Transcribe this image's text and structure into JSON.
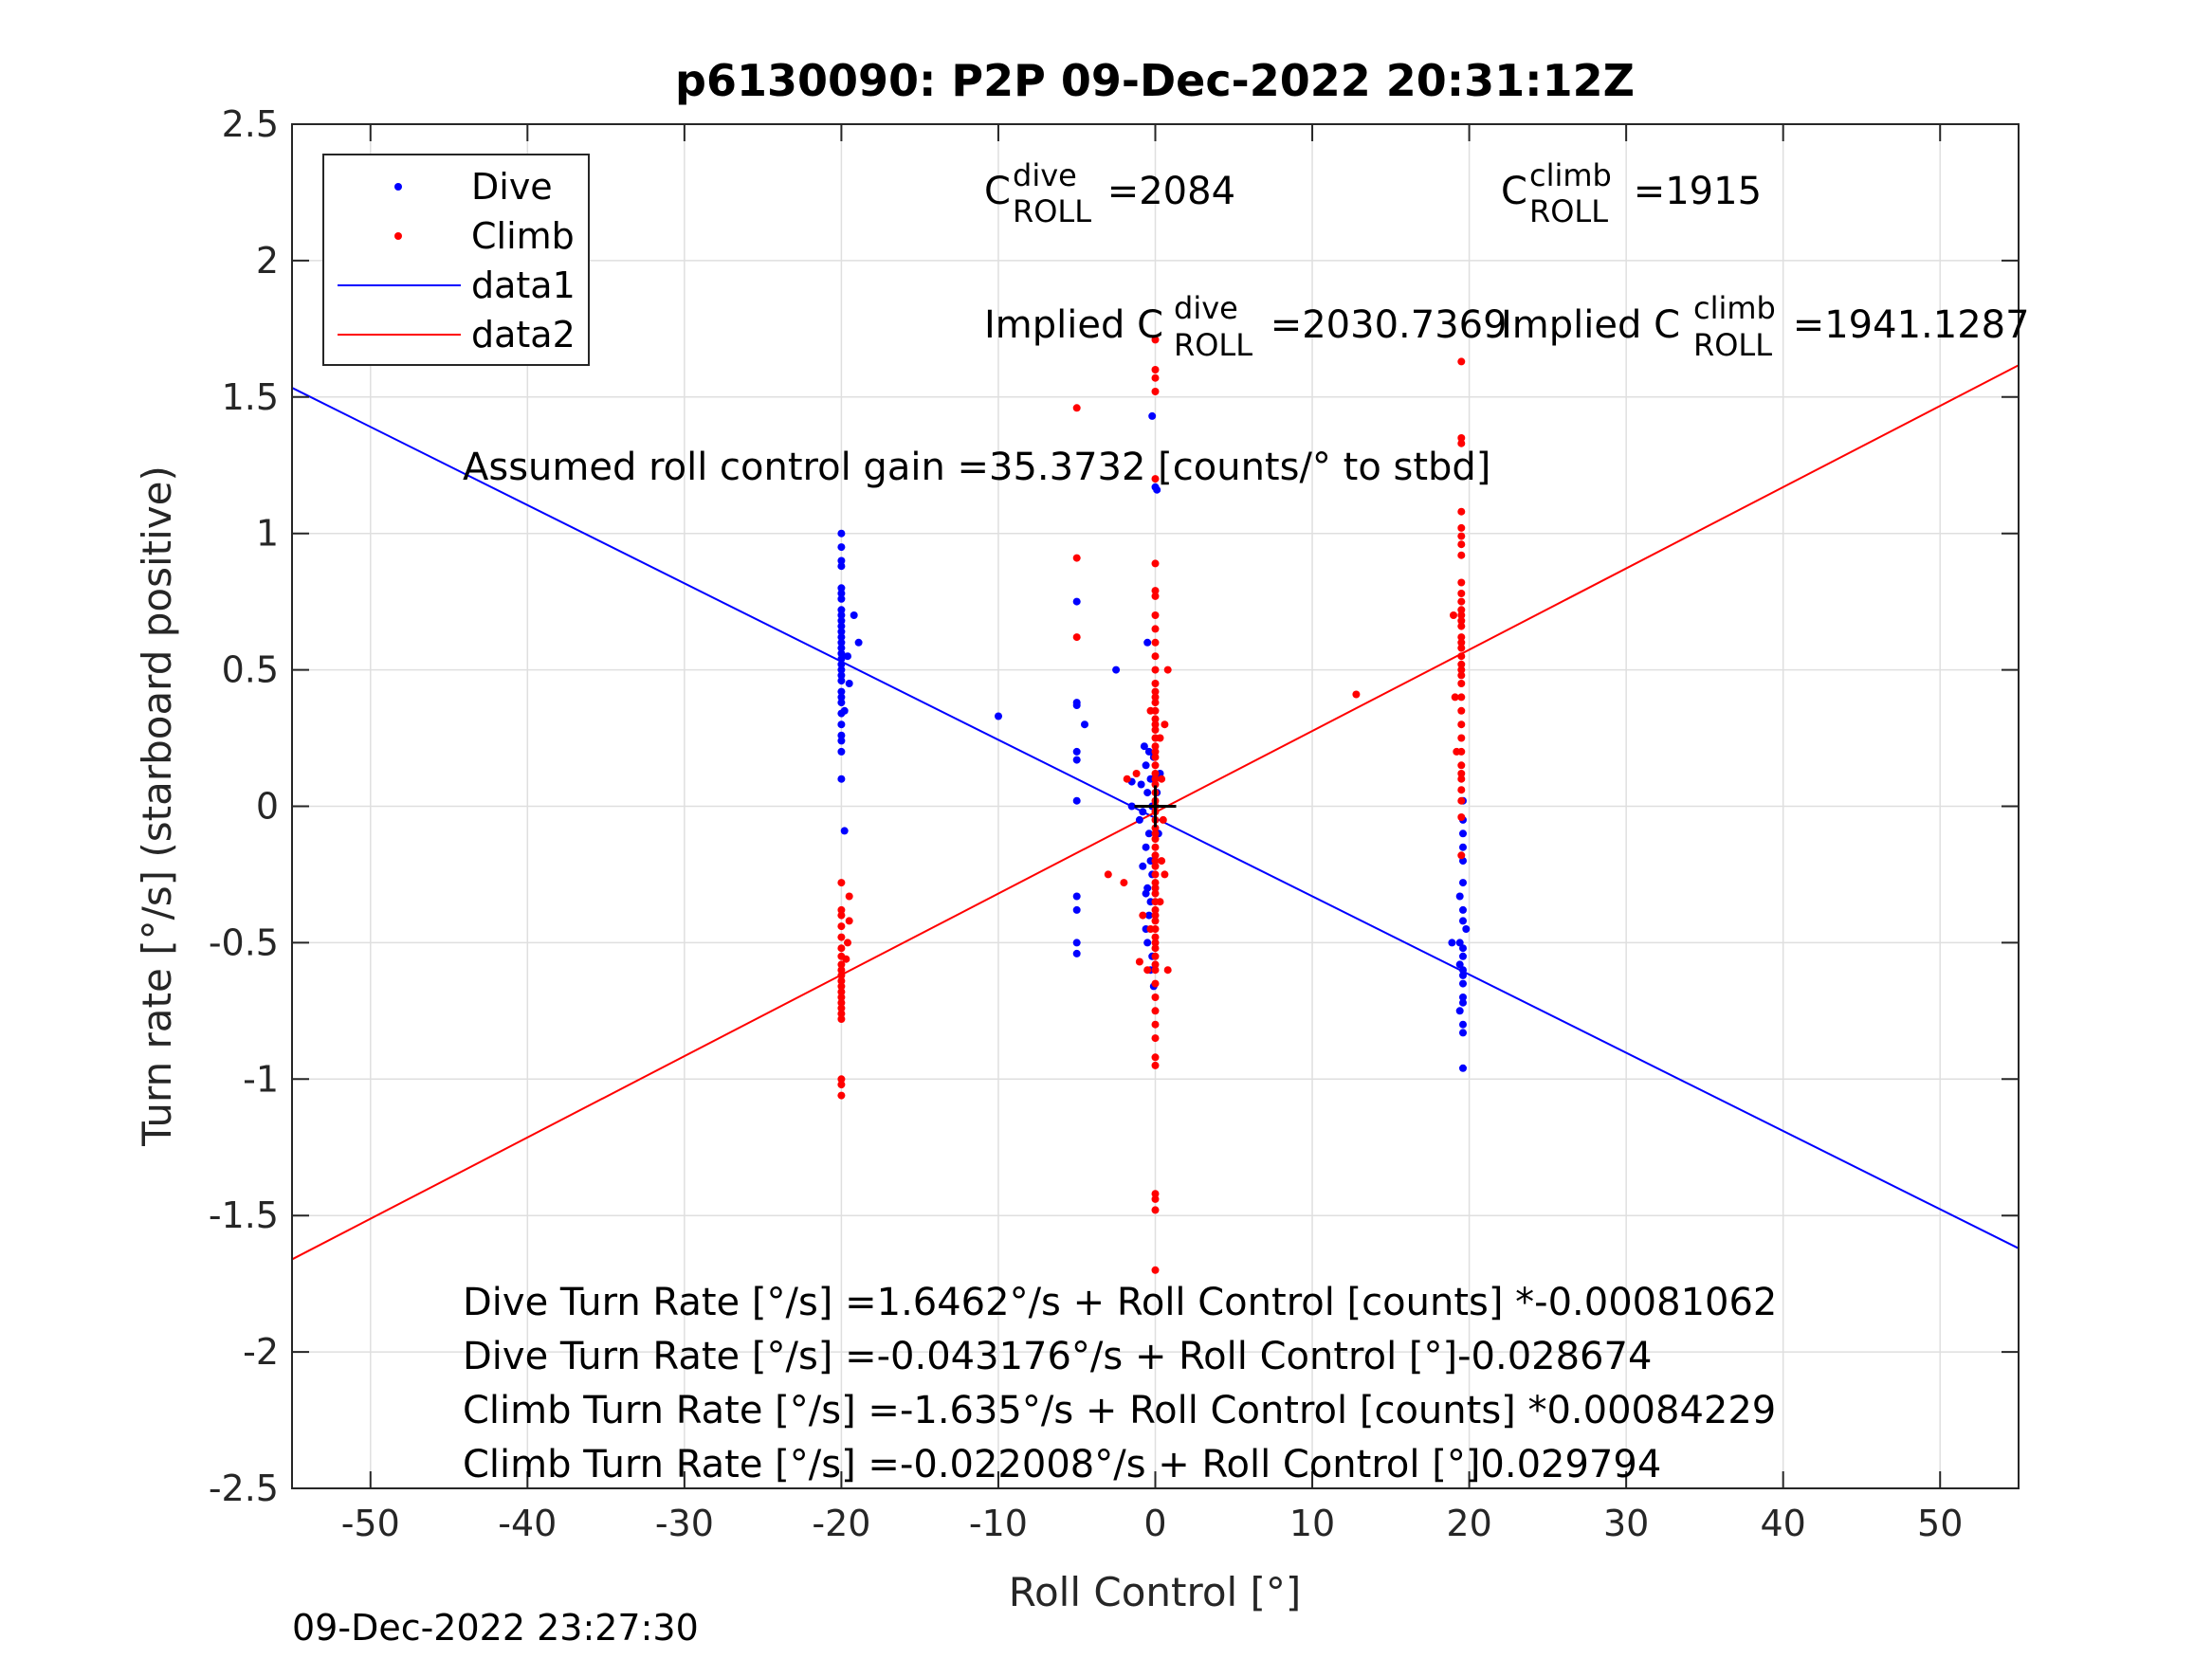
{
  "chart_data": {
    "type": "scatter",
    "title": "p6130090: P2P 09-Dec-2022 20:31:12Z",
    "xlabel": "Roll Control [°]",
    "ylabel": "Turn rate [°/s] (starboard positive)",
    "xlim": [
      -55,
      55
    ],
    "ylim": [
      -2.5,
      2.5
    ],
    "xticks": [
      -50,
      -40,
      -30,
      -20,
      -10,
      0,
      10,
      20,
      30,
      40,
      50
    ],
    "yticks": [
      -2.5,
      -2,
      -1.5,
      -1,
      -0.5,
      0,
      0.5,
      1,
      1.5,
      2,
      2.5
    ],
    "grid": true,
    "legend_position": "top-left",
    "timestamp": "09-Dec-2022 23:27:30",
    "series": [
      {
        "name": "Dive",
        "kind": "points",
        "color": "#0000ff",
        "points": [
          [
            -20,
            1.0
          ],
          [
            -20,
            0.95
          ],
          [
            -20,
            0.9
          ],
          [
            -20,
            0.88
          ],
          [
            -20,
            0.8
          ],
          [
            -20,
            0.78
          ],
          [
            -20,
            0.76
          ],
          [
            -20,
            0.72
          ],
          [
            -20,
            0.7
          ],
          [
            -20,
            0.68
          ],
          [
            -20,
            0.66
          ],
          [
            -20,
            0.64
          ],
          [
            -20,
            0.62
          ],
          [
            -20,
            0.6
          ],
          [
            -20,
            0.58
          ],
          [
            -20,
            0.56
          ],
          [
            -20,
            0.54
          ],
          [
            -20,
            0.52
          ],
          [
            -20,
            0.5
          ],
          [
            -20,
            0.48
          ],
          [
            -20,
            0.46
          ],
          [
            -20,
            0.42
          ],
          [
            -20,
            0.4
          ],
          [
            -20,
            0.38
          ],
          [
            -20,
            0.34
          ],
          [
            -20,
            0.3
          ],
          [
            -20,
            0.26
          ],
          [
            -20,
            0.24
          ],
          [
            -20,
            0.2
          ],
          [
            -20,
            0.1
          ],
          [
            -19.8,
            -0.09
          ],
          [
            -19.6,
            0.55
          ],
          [
            -19.8,
            0.35
          ],
          [
            -18.9,
            0.6
          ],
          [
            -19.2,
            0.7
          ],
          [
            -19.5,
            0.45
          ],
          [
            -10,
            0.33
          ],
          [
            -5,
            0.75
          ],
          [
            -5,
            0.38
          ],
          [
            -5,
            0.37
          ],
          [
            -5,
            0.2
          ],
          [
            -5,
            0.17
          ],
          [
            -5,
            0.02
          ],
          [
            -4.5,
            0.3
          ],
          [
            -5,
            -0.33
          ],
          [
            -5,
            -0.38
          ],
          [
            -5,
            -0.5
          ],
          [
            -5,
            -0.54
          ],
          [
            -2.5,
            0.5
          ],
          [
            -1.5,
            0.09
          ],
          [
            -1.5,
            0.0
          ],
          [
            -0.5,
            0.6
          ],
          [
            -0.2,
            1.43
          ],
          [
            0.0,
            1.17
          ],
          [
            0.1,
            1.16
          ],
          [
            -0.4,
            0.2
          ],
          [
            -0.6,
            0.15
          ],
          [
            -0.3,
            0.1
          ],
          [
            -0.5,
            0.05
          ],
          [
            -0.2,
            0.0
          ],
          [
            -0.8,
            -0.02
          ],
          [
            -0.4,
            -0.1
          ],
          [
            -0.6,
            -0.15
          ],
          [
            -0.3,
            -0.2
          ],
          [
            -0.2,
            -0.25
          ],
          [
            -0.5,
            -0.3
          ],
          [
            -0.3,
            -0.35
          ],
          [
            -0.4,
            -0.4
          ],
          [
            -0.6,
            -0.45
          ],
          [
            -0.5,
            -0.5
          ],
          [
            -0.2,
            -0.55
          ],
          [
            -0.3,
            -0.6
          ],
          [
            -0.1,
            -0.66
          ],
          [
            0.0,
            -0.3
          ],
          [
            0.2,
            -0.1
          ],
          [
            0.1,
            0.05
          ],
          [
            0.3,
            0.12
          ],
          [
            -0.9,
            0.08
          ],
          [
            -1.0,
            -0.05
          ],
          [
            -0.7,
            0.22
          ],
          [
            -0.1,
            0.18
          ],
          [
            -0.8,
            -0.22
          ],
          [
            -0.6,
            -0.32
          ],
          [
            19.6,
            0.02
          ],
          [
            19.6,
            -0.05
          ],
          [
            19.6,
            -0.1
          ],
          [
            19.6,
            -0.15
          ],
          [
            19.6,
            -0.2
          ],
          [
            19.6,
            -0.28
          ],
          [
            19.4,
            -0.33
          ],
          [
            19.6,
            -0.38
          ],
          [
            19.6,
            -0.42
          ],
          [
            19.4,
            -0.5
          ],
          [
            19.6,
            -0.52
          ],
          [
            19.6,
            -0.55
          ],
          [
            19.4,
            -0.58
          ],
          [
            19.6,
            -0.6
          ],
          [
            19.6,
            -0.62
          ],
          [
            19.6,
            -0.65
          ],
          [
            19.6,
            -0.7
          ],
          [
            19.6,
            -0.72
          ],
          [
            19.4,
            -0.75
          ],
          [
            19.6,
            -0.8
          ],
          [
            19.6,
            -0.83
          ],
          [
            19.6,
            -0.96
          ],
          [
            18.9,
            -0.5
          ],
          [
            19.8,
            -0.45
          ]
        ]
      },
      {
        "name": "Climb",
        "kind": "points",
        "color": "#ff0000",
        "points": [
          [
            -20,
            -0.28
          ],
          [
            -20,
            -0.38
          ],
          [
            -20,
            -0.4
          ],
          [
            -20,
            -0.44
          ],
          [
            -20,
            -0.48
          ],
          [
            -20,
            -0.52
          ],
          [
            -20,
            -0.55
          ],
          [
            -20,
            -0.58
          ],
          [
            -20,
            -0.6
          ],
          [
            -20,
            -0.62
          ],
          [
            -20,
            -0.64
          ],
          [
            -20,
            -0.66
          ],
          [
            -20,
            -0.68
          ],
          [
            -20,
            -0.7
          ],
          [
            -20,
            -0.72
          ],
          [
            -20,
            -0.74
          ],
          [
            -20,
            -0.76
          ],
          [
            -20,
            -0.78
          ],
          [
            -20,
            -1.0
          ],
          [
            -20,
            -1.02
          ],
          [
            -20,
            -1.06
          ],
          [
            -19.5,
            -0.33
          ],
          [
            -19.5,
            -0.42
          ],
          [
            -19.7,
            -0.56
          ],
          [
            -19.6,
            -0.5
          ],
          [
            -5,
            1.46
          ],
          [
            -5,
            0.91
          ],
          [
            -5,
            0.62
          ],
          [
            -3,
            -0.25
          ],
          [
            -2,
            -0.28
          ],
          [
            -1.8,
            0.1
          ],
          [
            -1.2,
            0.12
          ],
          [
            -1,
            -0.57
          ],
          [
            -0.8,
            -0.4
          ],
          [
            -0.5,
            -0.6
          ],
          [
            0.0,
            1.71
          ],
          [
            0.0,
            1.6
          ],
          [
            0.0,
            1.57
          ],
          [
            0.0,
            1.52
          ],
          [
            0.0,
            1.2
          ],
          [
            0.0,
            0.89
          ],
          [
            0.0,
            0.79
          ],
          [
            0.0,
            0.77
          ],
          [
            0.0,
            0.7
          ],
          [
            0.0,
            0.65
          ],
          [
            0.0,
            0.6
          ],
          [
            0.0,
            0.55
          ],
          [
            0.0,
            0.5
          ],
          [
            0.0,
            0.45
          ],
          [
            0.0,
            0.42
          ],
          [
            0.0,
            0.4
          ],
          [
            0.0,
            0.38
          ],
          [
            0.0,
            0.35
          ],
          [
            0.0,
            0.32
          ],
          [
            0.0,
            0.3
          ],
          [
            0.0,
            0.28
          ],
          [
            0.0,
            0.25
          ],
          [
            0.0,
            0.22
          ],
          [
            0.0,
            0.2
          ],
          [
            0.0,
            0.18
          ],
          [
            0.0,
            0.15
          ],
          [
            0.0,
            0.12
          ],
          [
            0.0,
            0.1
          ],
          [
            0.0,
            0.08
          ],
          [
            0.0,
            0.05
          ],
          [
            0.0,
            0.02
          ],
          [
            0.0,
            0.0
          ],
          [
            0.0,
            -0.02
          ],
          [
            0.0,
            -0.05
          ],
          [
            0.0,
            -0.08
          ],
          [
            0.0,
            -0.1
          ],
          [
            0.0,
            -0.12
          ],
          [
            0.0,
            -0.15
          ],
          [
            0.0,
            -0.18
          ],
          [
            0.0,
            -0.2
          ],
          [
            0.0,
            -0.22
          ],
          [
            0.0,
            -0.25
          ],
          [
            0.0,
            -0.28
          ],
          [
            0.0,
            -0.3
          ],
          [
            0.0,
            -0.32
          ],
          [
            0.0,
            -0.35
          ],
          [
            0.0,
            -0.38
          ],
          [
            0.0,
            -0.4
          ],
          [
            0.0,
            -0.42
          ],
          [
            0.0,
            -0.45
          ],
          [
            0.0,
            -0.48
          ],
          [
            0.0,
            -0.5
          ],
          [
            0.0,
            -0.52
          ],
          [
            0.0,
            -0.55
          ],
          [
            0.0,
            -0.58
          ],
          [
            0.0,
            -0.6
          ],
          [
            0.0,
            -0.65
          ],
          [
            0.0,
            -0.7
          ],
          [
            0.0,
            -0.75
          ],
          [
            0.0,
            -0.8
          ],
          [
            0.0,
            -0.85
          ],
          [
            0.0,
            -0.92
          ],
          [
            0.0,
            -0.95
          ],
          [
            0.0,
            -1.42
          ],
          [
            0.0,
            -1.44
          ],
          [
            0.0,
            -1.48
          ],
          [
            0.0,
            -1.7
          ],
          [
            0.3,
            0.25
          ],
          [
            0.4,
            0.1
          ],
          [
            0.5,
            -0.05
          ],
          [
            0.4,
            -0.2
          ],
          [
            0.3,
            -0.35
          ],
          [
            0.6,
            0.3
          ],
          [
            0.6,
            -0.25
          ],
          [
            0.8,
            -0.6
          ],
          [
            -0.3,
            0.35
          ],
          [
            -0.3,
            -0.45
          ],
          [
            0.8,
            0.5
          ],
          [
            12.8,
            0.41
          ],
          [
            19.5,
            1.63
          ],
          [
            19.5,
            1.35
          ],
          [
            19.5,
            1.33
          ],
          [
            19.5,
            1.08
          ],
          [
            19.5,
            1.02
          ],
          [
            19.5,
            0.99
          ],
          [
            19.5,
            0.96
          ],
          [
            19.5,
            0.92
          ],
          [
            19.5,
            0.82
          ],
          [
            19.5,
            0.78
          ],
          [
            19.5,
            0.75
          ],
          [
            19.5,
            0.72
          ],
          [
            19.5,
            0.7
          ],
          [
            19.5,
            0.68
          ],
          [
            19.5,
            0.66
          ],
          [
            19.5,
            0.62
          ],
          [
            19.5,
            0.6
          ],
          [
            19.5,
            0.58
          ],
          [
            19.5,
            0.55
          ],
          [
            19.5,
            0.52
          ],
          [
            19.5,
            0.5
          ],
          [
            19.5,
            0.48
          ],
          [
            19.5,
            0.45
          ],
          [
            19.5,
            0.4
          ],
          [
            19.5,
            0.35
          ],
          [
            19.5,
            0.3
          ],
          [
            19.5,
            0.25
          ],
          [
            19.5,
            0.2
          ],
          [
            19.5,
            0.15
          ],
          [
            19.5,
            0.12
          ],
          [
            19.5,
            0.1
          ],
          [
            19.5,
            0.06
          ],
          [
            19.5,
            0.02
          ],
          [
            19.5,
            -0.04
          ],
          [
            19.5,
            -0.18
          ],
          [
            19.0,
            0.7
          ],
          [
            19.1,
            0.4
          ],
          [
            19.2,
            0.2
          ]
        ]
      },
      {
        "name": "data1",
        "kind": "line",
        "color": "#0000ff",
        "intercept": -0.043176,
        "slope": -0.028674
      },
      {
        "name": "data2",
        "kind": "line",
        "color": "#ff0000",
        "intercept": -0.022008,
        "slope": 0.029794
      }
    ],
    "marker": {
      "x": 0,
      "y": 0,
      "symbol": "+"
    },
    "annotations": {
      "c_dive_prefix": "C",
      "c_dive_sup": "dive",
      "c_dive_sub": "ROLL",
      "c_dive_val": " =2084",
      "c_climb_prefix": "C",
      "c_climb_sup": "climb",
      "c_climb_sub": "ROLL",
      "c_climb_val": " =1915",
      "impl_dive_prefix": "Implied C",
      "impl_dive_sup": "dive",
      "impl_dive_sub": "ROLL",
      "impl_dive_val": " =2030.7369",
      "impl_climb_prefix": "Implied C",
      "impl_climb_sup": "climb",
      "impl_climb_sub": "ROLL",
      "impl_climb_val": " =1941.1287",
      "gain": "Assumed roll control gain =35.3732 [counts/° to stbd]",
      "eq1": "Dive Turn Rate [°/s] =1.6462°/s + Roll Control [counts] *-0.00081062",
      "eq2": "Dive Turn Rate [°/s] =-0.043176°/s + Roll Control [°]-0.028674",
      "eq3": "Climb Turn Rate [°/s] =-1.635°/s + Roll Control [counts] *0.00084229",
      "eq4": "Climb Turn Rate [°/s] =-0.022008°/s + Roll Control [°]0.029794"
    }
  }
}
